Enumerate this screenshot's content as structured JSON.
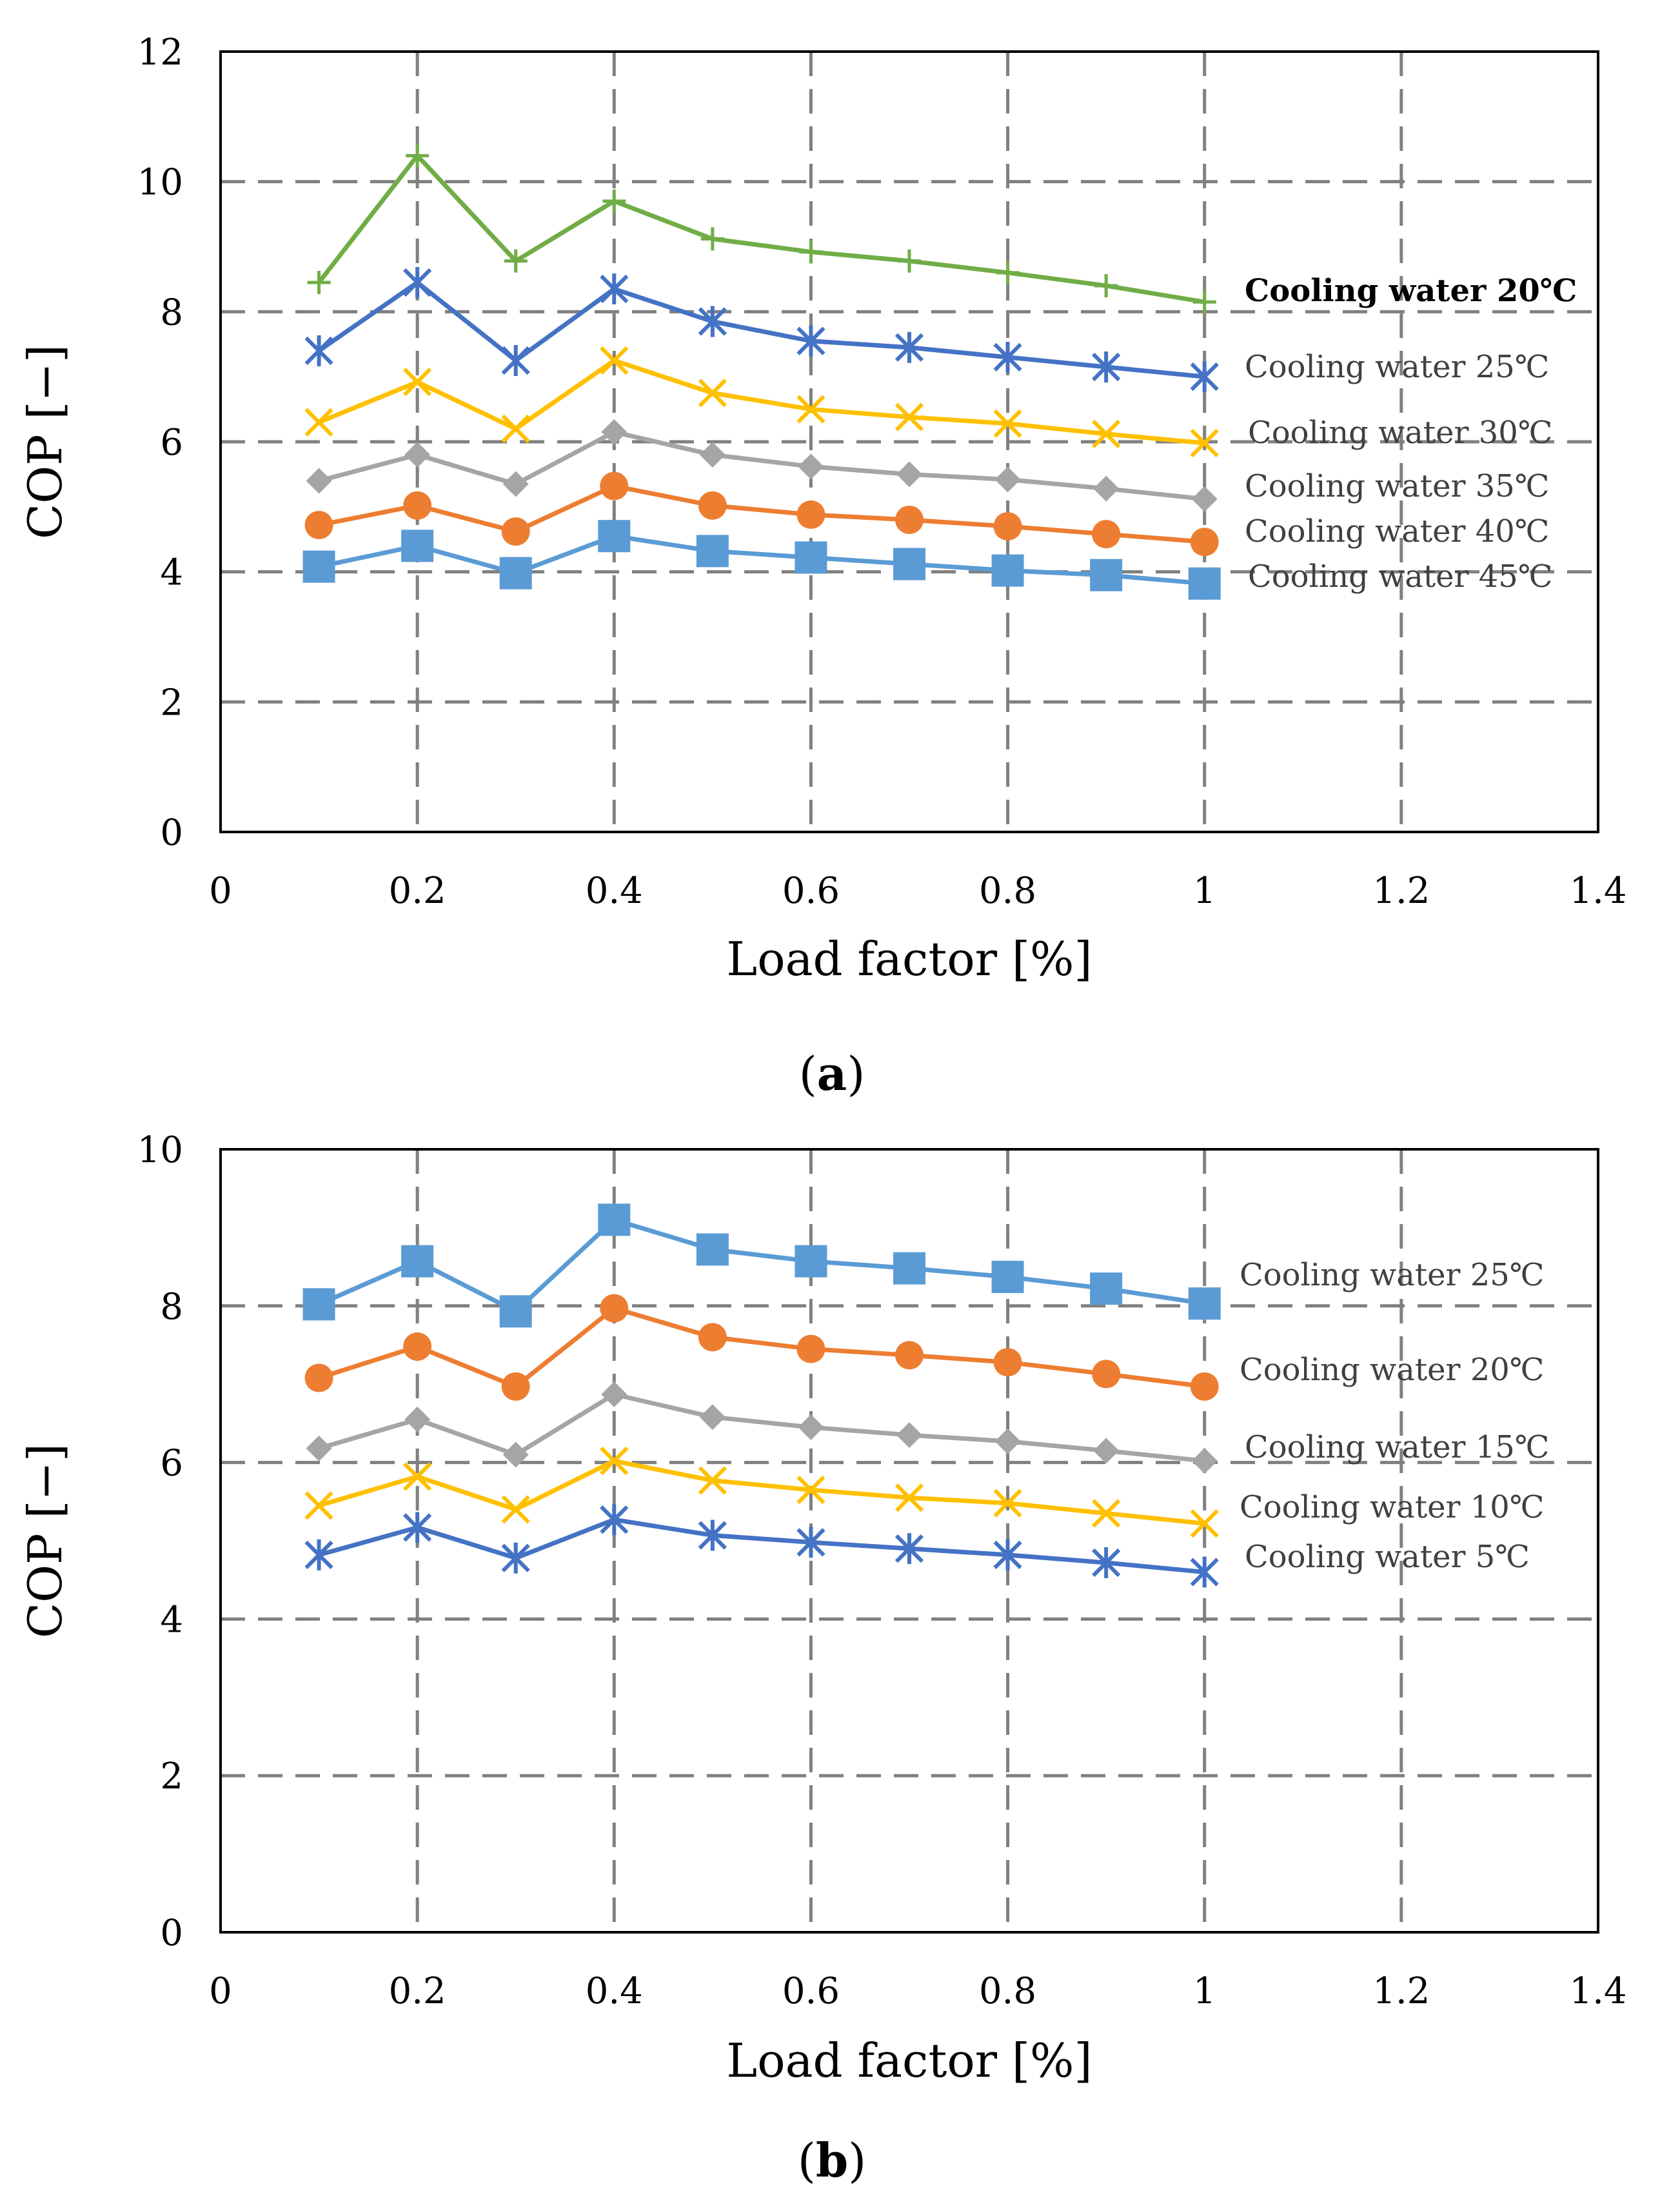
{
  "chart_data": [
    {
      "type": "line",
      "caption_letter": "a",
      "xlabel": "Load factor [%]",
      "ylabel": "COP [−]",
      "xlim": [
        0,
        1.4
      ],
      "ylim": [
        0,
        12
      ],
      "xticks": [
        "0",
        "0.2",
        "0.4",
        "0.6",
        "0.8",
        "1",
        "1.2",
        "1.4"
      ],
      "yticks": [
        "0",
        "2",
        "4",
        "6",
        "8",
        "10",
        "12"
      ],
      "grid": true,
      "x": [
        0.1,
        0.2,
        0.3,
        0.4,
        0.5,
        0.6,
        0.7,
        0.8,
        0.9,
        1.0
      ],
      "series": [
        {
          "name": "Cooling water 20℃",
          "label_bold": true,
          "color": "#70ad47",
          "marker": "plus",
          "values": [
            8.45,
            10.4,
            8.78,
            9.7,
            9.12,
            8.92,
            8.78,
            8.6,
            8.4,
            8.15
          ]
        },
        {
          "name": "Cooling water 25℃",
          "label_bold": false,
          "color": "#4472c4",
          "marker": "star",
          "values": [
            7.4,
            8.45,
            7.25,
            8.35,
            7.85,
            7.55,
            7.45,
            7.3,
            7.15,
            7.0
          ]
        },
        {
          "name": "Cooling water 30℃",
          "label_bold": false,
          "color": "#ffc000",
          "marker": "x",
          "values": [
            6.3,
            6.92,
            6.2,
            7.25,
            6.75,
            6.5,
            6.38,
            6.28,
            6.12,
            5.98
          ]
        },
        {
          "name": "Cooling water 35℃",
          "label_bold": false,
          "color": "#a5a5a5",
          "marker": "diamond",
          "values": [
            5.4,
            5.8,
            5.35,
            6.15,
            5.8,
            5.62,
            5.5,
            5.42,
            5.28,
            5.12
          ]
        },
        {
          "name": "Cooling water 40℃",
          "label_bold": false,
          "color": "#ed7d31",
          "marker": "circle",
          "values": [
            4.72,
            5.02,
            4.62,
            5.32,
            5.02,
            4.88,
            4.8,
            4.7,
            4.58,
            4.46
          ]
        },
        {
          "name": "Cooling water 45℃",
          "label_bold": false,
          "color": "#5b9bd5",
          "marker": "square",
          "values": [
            4.08,
            4.4,
            3.98,
            4.55,
            4.32,
            4.22,
            4.12,
            4.02,
            3.95,
            3.82
          ]
        }
      ]
    },
    {
      "type": "line",
      "caption_letter": "b",
      "xlabel": "Load factor [%]",
      "ylabel": "COP [−]",
      "xlim": [
        0,
        1.4
      ],
      "ylim": [
        0,
        10
      ],
      "xticks": [
        "0",
        "0.2",
        "0.4",
        "0.6",
        "0.8",
        "1",
        "1.2",
        "1.4"
      ],
      "yticks": [
        "0",
        "2",
        "4",
        "6",
        "8",
        "10"
      ],
      "grid": true,
      "x": [
        0.1,
        0.2,
        0.3,
        0.4,
        0.5,
        0.6,
        0.7,
        0.8,
        0.9,
        1.0
      ],
      "series": [
        {
          "name": "Cooling water 25℃",
          "label_bold": false,
          "color": "#5b9bd5",
          "marker": "square",
          "values": [
            8.02,
            8.57,
            7.93,
            9.1,
            8.72,
            8.57,
            8.48,
            8.37,
            8.22,
            8.03
          ]
        },
        {
          "name": "Cooling water 20℃",
          "label_bold": false,
          "color": "#ed7d31",
          "marker": "circle",
          "values": [
            7.08,
            7.48,
            6.97,
            7.97,
            7.6,
            7.45,
            7.37,
            7.28,
            7.13,
            6.97
          ]
        },
        {
          "name": "Cooling water 15℃",
          "label_bold": false,
          "color": "#a5a5a5",
          "marker": "diamond",
          "values": [
            6.18,
            6.55,
            6.1,
            6.87,
            6.58,
            6.45,
            6.35,
            6.27,
            6.15,
            6.02
          ]
        },
        {
          "name": "Cooling water 10℃",
          "label_bold": false,
          "color": "#ffc000",
          "marker": "x",
          "values": [
            5.45,
            5.82,
            5.4,
            6.02,
            5.77,
            5.65,
            5.55,
            5.48,
            5.35,
            5.22
          ]
        },
        {
          "name": "Cooling water 5℃",
          "label_bold": false,
          "color": "#4472c4",
          "marker": "star",
          "values": [
            4.82,
            5.17,
            4.78,
            5.27,
            5.07,
            4.98,
            4.9,
            4.82,
            4.72,
            4.6
          ]
        }
      ]
    }
  ]
}
